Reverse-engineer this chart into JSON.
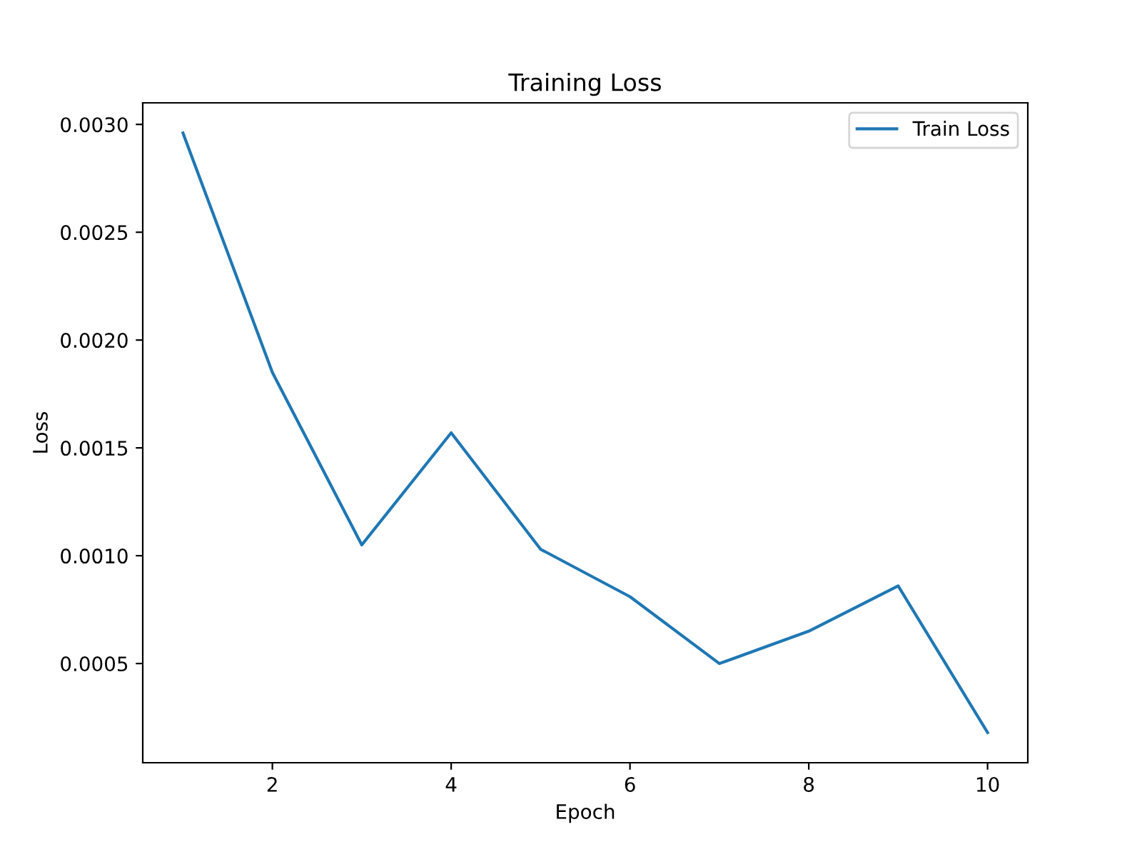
{
  "chart_data": {
    "type": "line",
    "title": "Training Loss",
    "xlabel": "Epoch",
    "ylabel": "Loss",
    "x": [
      1,
      2,
      3,
      4,
      5,
      6,
      7,
      8,
      9,
      10
    ],
    "series": [
      {
        "name": "Train Loss",
        "color": "#1f77b4",
        "values": [
          0.00296,
          0.00185,
          0.00105,
          0.00157,
          0.00103,
          0.00081,
          0.0005,
          0.00065,
          0.00086,
          0.00018
        ]
      }
    ],
    "xlim": [
      0.55,
      10.45
    ],
    "ylim": [
      4e-05,
      0.0031
    ],
    "xticks": [
      2,
      4,
      6,
      8,
      10
    ],
    "yticks": [
      {
        "value": 0.0005,
        "label": "0.0005"
      },
      {
        "value": 0.001,
        "label": "0.0010"
      },
      {
        "value": 0.0015,
        "label": "0.0015"
      },
      {
        "value": 0.002,
        "label": "0.0020"
      },
      {
        "value": 0.0025,
        "label": "0.0025"
      },
      {
        "value": 0.003,
        "label": "0.0030"
      }
    ],
    "legend": "top right",
    "grid": false,
    "marker": "none",
    "line_style": "solid"
  }
}
